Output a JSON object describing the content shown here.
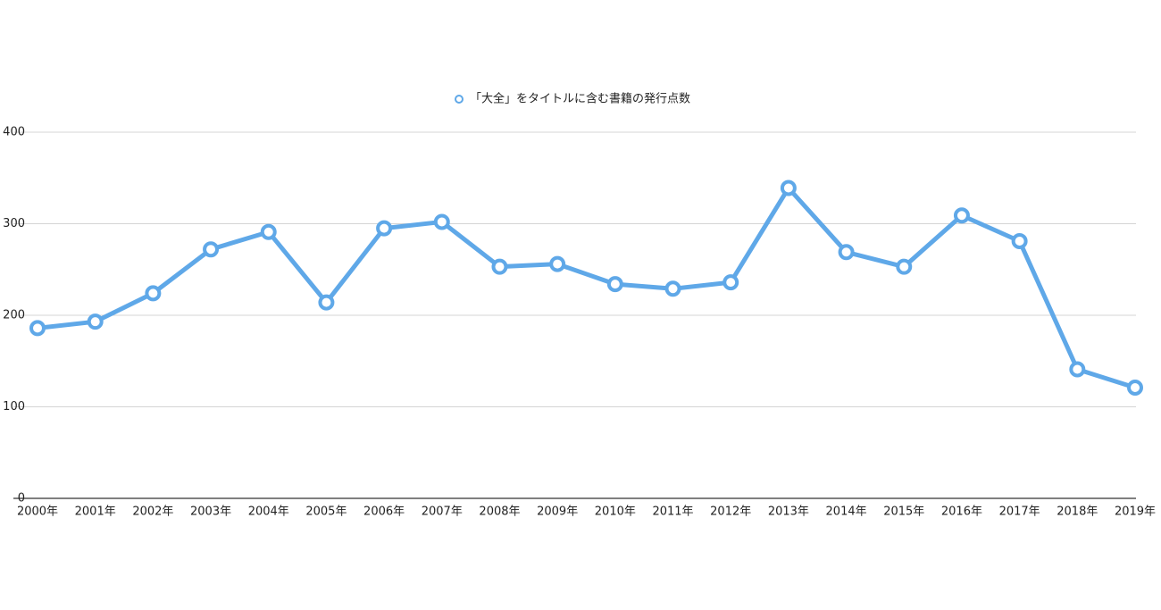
{
  "chart_data": {
    "type": "line",
    "categories": [
      "2000年",
      "2001年",
      "2002年",
      "2003年",
      "2004年",
      "2005年",
      "2006年",
      "2007年",
      "2008年",
      "2009年",
      "2010年",
      "2011年",
      "2012年",
      "2013年",
      "2014年",
      "2015年",
      "2016年",
      "2017年",
      "2018年",
      "2019年"
    ],
    "series": [
      {
        "name": "「大全」をタイトルに含む書籍の発行点数",
        "color": "#5fa8e8",
        "values": [
          186,
          193,
          224,
          272,
          291,
          214,
          295,
          302,
          253,
          256,
          234,
          229,
          236,
          339,
          269,
          253,
          309,
          281,
          141,
          121
        ]
      }
    ],
    "ylim": [
      0,
      400
    ],
    "yticks": [
      0,
      100,
      200,
      300,
      400
    ],
    "grid": true,
    "legend": "top"
  }
}
